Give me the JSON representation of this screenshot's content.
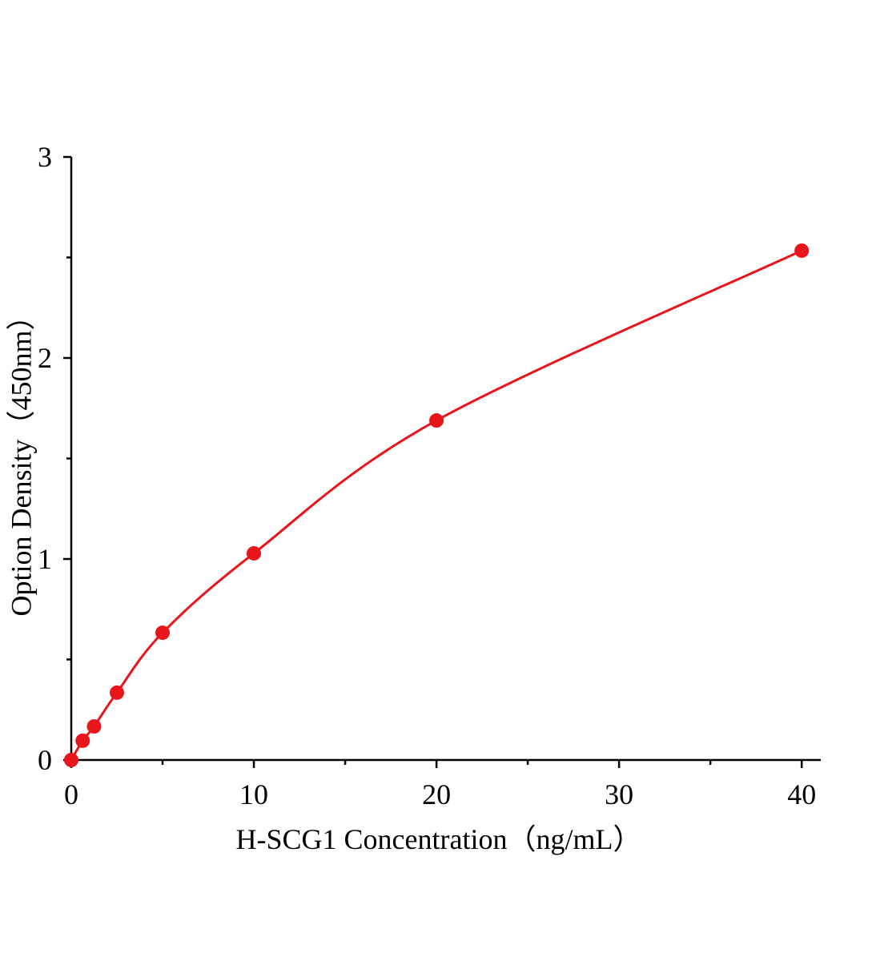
{
  "chart_data": {
    "type": "scatter",
    "x_label": "H-SCG1 Concentration（ng/mL）",
    "y_label": "Option Density（450nm）",
    "series": [
      {
        "color": "#e8151b",
        "x": [
          0,
          0.625,
          1.25,
          2.5,
          5,
          10,
          20,
          40
        ],
        "values": [
          0,
          0.096,
          0.167,
          0.335,
          0.633,
          1.028,
          1.689,
          2.534
        ]
      }
    ],
    "xlim": [
      0,
      41
    ],
    "ylim": [
      0,
      3
    ],
    "xticks": [
      0,
      10,
      20,
      30,
      40
    ],
    "yticks": [
      0,
      1,
      2,
      3
    ],
    "xminorticks": [
      5,
      15,
      25,
      35
    ],
    "yminorticks": [
      0.5,
      1.5,
      2.5
    ],
    "smooth_line": true
  }
}
